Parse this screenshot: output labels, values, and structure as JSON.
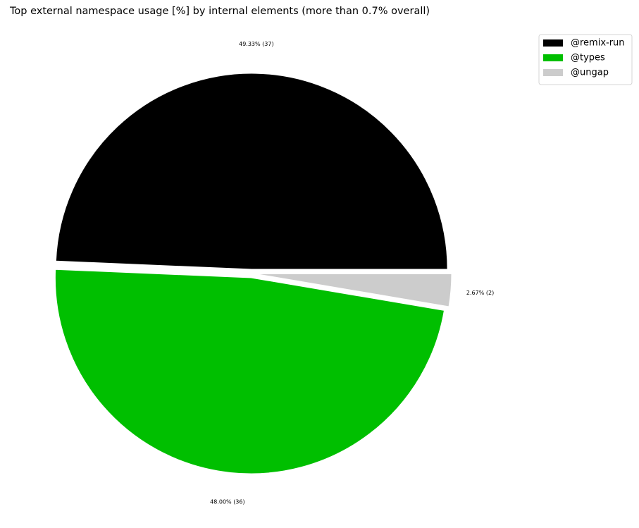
{
  "chart_data": {
    "type": "pie",
    "title": "Top external namespace usage [%] by internal elements (more than 0.7% overall)",
    "legend_position": "upper-right",
    "slices": [
      {
        "label": "@remix-run",
        "value": 49.33,
        "count": 37,
        "display": "49.33% (37)",
        "color": "#000000"
      },
      {
        "label": "@types",
        "value": 48.0,
        "count": 36,
        "display": "48.00% (36)",
        "color": "#00bf00"
      },
      {
        "label": "@ungap",
        "value": 2.67,
        "count": 2,
        "display": "2.67% (2)",
        "color": "#cccccc"
      }
    ]
  }
}
